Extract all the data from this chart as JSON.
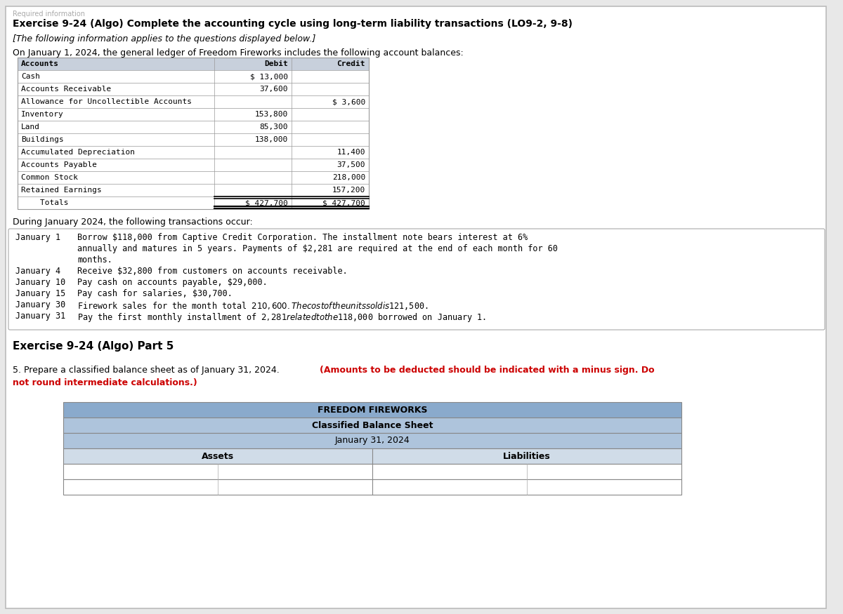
{
  "page_bg": "#e8e8e8",
  "content_bg": "#ffffff",
  "title_bold": "Exercise 9-24 (Algo) Complete the accounting cycle using long-term liability transactions (LO9-2, 9-8)",
  "subtitle_italic": "[The following information applies to the questions displayed below.]",
  "intro_text": "On January 1, 2024, the general ledger of Freedom Fireworks includes the following account balances:",
  "table_header_bg": "#c8d0dc",
  "table_border": "#999999",
  "accounts": [
    "Accounts",
    "Cash",
    "Accounts Receivable",
    "Allowance for Uncollectible Accounts",
    "Inventory",
    "Land",
    "Buildings",
    "Accumulated Depreciation",
    "Accounts Payable",
    "Common Stock",
    "Retained Earnings",
    "    Totals"
  ],
  "debits": [
    "Debit",
    "$ 13,000",
    "37,600",
    "",
    "153,800",
    "85,300",
    "138,000",
    "",
    "",
    "",
    "",
    "$ 427,700"
  ],
  "credits": [
    "Credit",
    "",
    "",
    "$ 3,600",
    "",
    "",
    "",
    "11,400",
    "37,500",
    "218,000",
    "157,200",
    "$ 427,700"
  ],
  "transactions_title": "During January 2024, the following transactions occur:",
  "trans_lines": [
    [
      "January 1 ",
      "Borrow $118,000 from Captive Credit Corporation. The installment note bears interest at 6%"
    ],
    [
      "          ",
      "annually and matures in 5 years. Payments of $2,281 are required at the end of each month for 60"
    ],
    [
      "          ",
      "months."
    ],
    [
      "January 4 ",
      "Receive $32,800 from customers on accounts receivable."
    ],
    [
      "January 10",
      "Pay cash on accounts payable, $29,000."
    ],
    [
      "January 15",
      "Pay cash for salaries, $30,700."
    ],
    [
      "January 30",
      "Firework sales for the month total $210,600. The cost of the units sold is $121,500."
    ],
    [
      "January 31",
      "Pay the first monthly installment of $2,281 related to the $118,000 borrowed on January 1."
    ]
  ],
  "part_title": "Exercise 9-24 (Algo) Part 5",
  "q_normal": "5. Prepare a classified balance sheet as of January 31, 2024. ",
  "q_bold_red": "(Amounts to be deducted should be indicated with a minus sign. Do not round intermediate calculations.)",
  "bs_title1": "FREEDOM FIREWORKS",
  "bs_title2": "Classified Balance Sheet",
  "bs_title3": "January 31, 2024",
  "bs_col1": "Assets",
  "bs_col2": "Liabilities",
  "bs_hdr_bg": "#8aaacc",
  "bs_sub_bg": "#aec4dc",
  "bs_col_bg": "#d0dce8"
}
